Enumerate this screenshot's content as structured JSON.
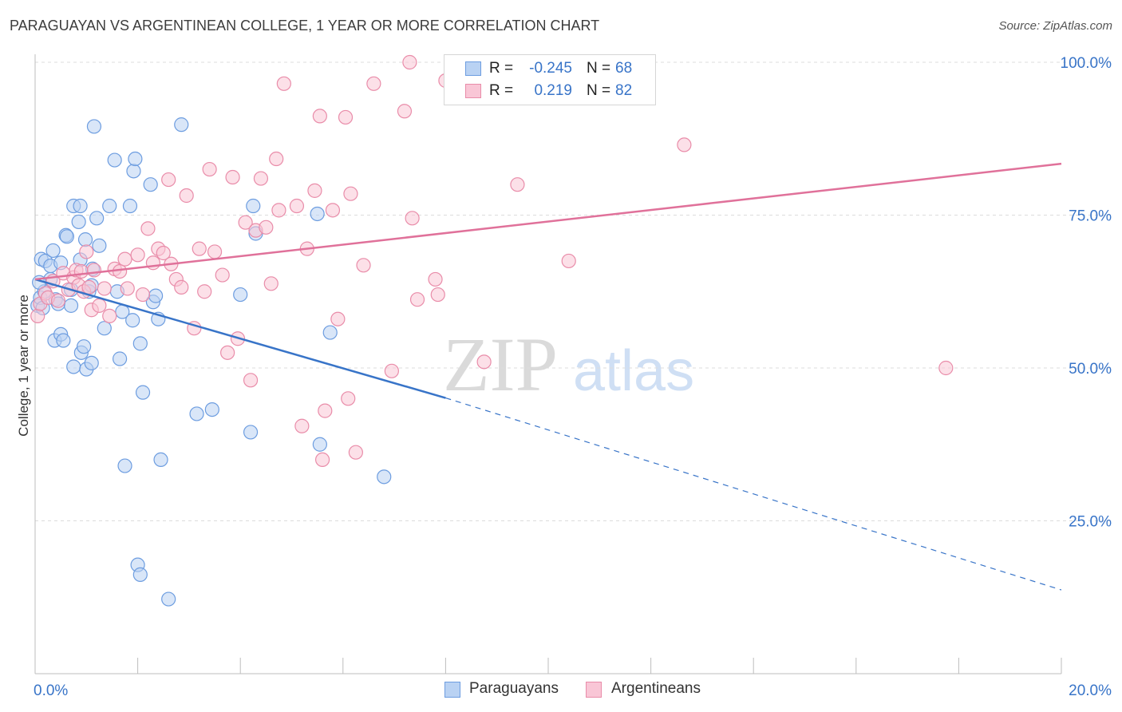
{
  "title": "PARAGUAYAN VS ARGENTINEAN COLLEGE, 1 YEAR OR MORE CORRELATION CHART",
  "source": "Source: ZipAtlas.com",
  "watermark": {
    "zip": "ZIP",
    "atlas": "atlas"
  },
  "legend": {
    "items": [
      {
        "r_label": "R =",
        "r_value": "-0.245",
        "n_label": "N =",
        "n_value": "68",
        "fill": "#b9d2f3",
        "stroke": "#6d9de0"
      },
      {
        "r_label": "R =",
        "r_value": "0.219",
        "n_label": "N =",
        "n_value": "82",
        "fill": "#f9c6d6",
        "stroke": "#e98ca9"
      }
    ]
  },
  "bottom_legend": [
    "Paraguayans",
    "Argentineans"
  ],
  "chart_data": {
    "type": "scatter",
    "title": "PARAGUAYAN VS ARGENTINEAN COLLEGE, 1 YEAR OR MORE CORRELATION CHART",
    "xlabel": "",
    "ylabel": "College, 1 year or more",
    "xlim": [
      0,
      20
    ],
    "ylim": [
      0,
      100
    ],
    "x_tick_labels": [
      "0.0%",
      "20.0%"
    ],
    "y_ticks": [
      25,
      50,
      75,
      100
    ],
    "y_tick_labels": [
      "25.0%",
      "50.0%",
      "75.0%",
      "100.0%"
    ],
    "grid": true,
    "colors": {
      "paraguayans": "#3874c8",
      "argentineans": "#e0719a",
      "tick_label": "#3874c8"
    },
    "series": [
      {
        "name": "Paraguayans",
        "color": "#3874c8",
        "fill": "#b9d2f3",
        "trend": {
          "x": [
            0,
            8
          ],
          "y": [
            64.5,
            45.1
          ],
          "dashed_to": [
            20,
            13.7
          ]
        },
        "points": [
          [
            0.05,
            60.2
          ],
          [
            0.1,
            61.5
          ],
          [
            0.12,
            67.8
          ],
          [
            0.18,
            62.5
          ],
          [
            0.2,
            67.5
          ],
          [
            0.3,
            64.5
          ],
          [
            0.3,
            66.7
          ],
          [
            0.35,
            69.2
          ],
          [
            0.38,
            54.5
          ],
          [
            0.4,
            61.2
          ],
          [
            0.45,
            60.5
          ],
          [
            0.5,
            67.2
          ],
          [
            0.5,
            55.5
          ],
          [
            0.55,
            54.5
          ],
          [
            0.6,
            71.7
          ],
          [
            0.62,
            71.5
          ],
          [
            0.7,
            60.2
          ],
          [
            0.7,
            62.8
          ],
          [
            0.75,
            76.5
          ],
          [
            0.75,
            50.2
          ],
          [
            0.85,
            73.9
          ],
          [
            0.88,
            76.5
          ],
          [
            0.88,
            67.7
          ],
          [
            0.9,
            52.5
          ],
          [
            0.95,
            53.5
          ],
          [
            0.98,
            71.0
          ],
          [
            1.0,
            49.8
          ],
          [
            1.05,
            62.5
          ],
          [
            1.1,
            63.5
          ],
          [
            1.1,
            50.8
          ],
          [
            1.12,
            66.2
          ],
          [
            1.15,
            89.5
          ],
          [
            1.2,
            74.5
          ],
          [
            1.25,
            70.0
          ],
          [
            1.35,
            56.5
          ],
          [
            1.45,
            76.5
          ],
          [
            1.55,
            84.0
          ],
          [
            1.6,
            62.5
          ],
          [
            1.65,
            51.5
          ],
          [
            1.7,
            59.2
          ],
          [
            1.75,
            34.0
          ],
          [
            1.85,
            76.5
          ],
          [
            1.9,
            57.8
          ],
          [
            1.92,
            82.2
          ],
          [
            1.95,
            84.2
          ],
          [
            2.0,
            17.8
          ],
          [
            2.05,
            16.2
          ],
          [
            2.05,
            54.0
          ],
          [
            2.1,
            46.0
          ],
          [
            2.25,
            80.0
          ],
          [
            2.3,
            60.8
          ],
          [
            2.35,
            61.8
          ],
          [
            2.4,
            58.0
          ],
          [
            2.45,
            35.0
          ],
          [
            2.6,
            12.2
          ],
          [
            2.85,
            89.8
          ],
          [
            3.15,
            42.5
          ],
          [
            3.45,
            43.2
          ],
          [
            4.0,
            62.0
          ],
          [
            4.2,
            39.5
          ],
          [
            4.25,
            76.5
          ],
          [
            4.3,
            72.0
          ],
          [
            5.5,
            75.2
          ],
          [
            5.55,
            37.5
          ],
          [
            5.75,
            55.8
          ],
          [
            6.8,
            32.2
          ],
          [
            0.08,
            64.0
          ],
          [
            0.15,
            59.8
          ]
        ]
      },
      {
        "name": "Argentineans",
        "color": "#e0719a",
        "fill": "#f9c6d6",
        "trend": {
          "x": [
            0,
            20
          ],
          "y": [
            64.5,
            83.4
          ]
        },
        "points": [
          [
            0.05,
            58.5
          ],
          [
            0.1,
            60.5
          ],
          [
            0.2,
            62.2
          ],
          [
            0.25,
            61.5
          ],
          [
            0.35,
            64.2
          ],
          [
            0.45,
            61.0
          ],
          [
            0.55,
            65.5
          ],
          [
            0.65,
            62.8
          ],
          [
            0.75,
            64.8
          ],
          [
            0.8,
            66.0
          ],
          [
            0.85,
            63.5
          ],
          [
            0.9,
            65.8
          ],
          [
            0.95,
            62.5
          ],
          [
            1.0,
            69.0
          ],
          [
            1.05,
            63.2
          ],
          [
            1.1,
            59.5
          ],
          [
            1.15,
            66.0
          ],
          [
            1.25,
            60.2
          ],
          [
            1.35,
            63.0
          ],
          [
            1.45,
            58.5
          ],
          [
            1.55,
            66.2
          ],
          [
            1.65,
            65.8
          ],
          [
            1.75,
            67.8
          ],
          [
            1.8,
            63.0
          ],
          [
            2.0,
            68.5
          ],
          [
            2.1,
            62.0
          ],
          [
            2.2,
            72.8
          ],
          [
            2.3,
            67.2
          ],
          [
            2.4,
            69.5
          ],
          [
            2.5,
            68.8
          ],
          [
            2.6,
            80.8
          ],
          [
            2.65,
            67.0
          ],
          [
            2.75,
            64.5
          ],
          [
            2.85,
            63.2
          ],
          [
            2.95,
            78.2
          ],
          [
            3.1,
            56.5
          ],
          [
            3.2,
            69.5
          ],
          [
            3.3,
            62.5
          ],
          [
            3.4,
            82.5
          ],
          [
            3.5,
            69.0
          ],
          [
            3.65,
            65.2
          ],
          [
            3.75,
            52.5
          ],
          [
            3.85,
            81.2
          ],
          [
            3.95,
            54.8
          ],
          [
            4.1,
            73.8
          ],
          [
            4.2,
            48.0
          ],
          [
            4.3,
            72.5
          ],
          [
            4.4,
            81.0
          ],
          [
            4.5,
            73.0
          ],
          [
            4.6,
            63.8
          ],
          [
            4.7,
            84.2
          ],
          [
            4.75,
            75.8
          ],
          [
            4.85,
            96.5
          ],
          [
            5.1,
            76.5
          ],
          [
            5.2,
            40.5
          ],
          [
            5.3,
            69.5
          ],
          [
            5.45,
            79.0
          ],
          [
            5.55,
            91.2
          ],
          [
            5.6,
            35.0
          ],
          [
            5.65,
            43.0
          ],
          [
            5.8,
            75.8
          ],
          [
            5.9,
            58.0
          ],
          [
            6.05,
            91.0
          ],
          [
            6.1,
            45.0
          ],
          [
            6.15,
            78.5
          ],
          [
            6.25,
            36.2
          ],
          [
            6.4,
            66.8
          ],
          [
            6.6,
            96.5
          ],
          [
            6.95,
            49.5
          ],
          [
            7.2,
            92.0
          ],
          [
            7.3,
            100.0
          ],
          [
            7.35,
            74.5
          ],
          [
            7.45,
            61.2
          ],
          [
            7.8,
            64.5
          ],
          [
            7.85,
            62.0
          ],
          [
            8.0,
            97.0
          ],
          [
            8.7,
            100.0
          ],
          [
            8.75,
            51.0
          ],
          [
            9.4,
            80.0
          ],
          [
            10.4,
            67.5
          ],
          [
            12.65,
            86.5
          ],
          [
            17.75,
            50.0
          ]
        ]
      }
    ]
  }
}
